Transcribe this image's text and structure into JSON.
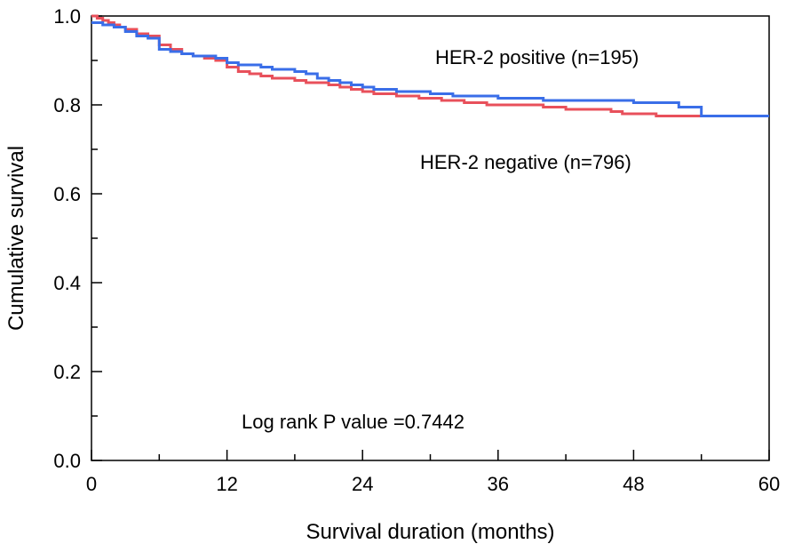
{
  "chart_data": {
    "type": "line",
    "step": true,
    "xlabel": "Survival duration (months)",
    "ylabel": "Cumulative survival",
    "xlim": [
      0,
      60
    ],
    "ylim": [
      0.0,
      1.0
    ],
    "x_ticks": [
      0,
      12,
      24,
      36,
      48,
      60
    ],
    "y_ticks": [
      0.0,
      0.2,
      0.4,
      0.6,
      0.8,
      1.0
    ],
    "x_tick_labels": [
      "0",
      "12",
      "24",
      "36",
      "48",
      "60"
    ],
    "y_tick_labels": [
      "0.0",
      "0.2",
      "0.4",
      "0.6",
      "0.8",
      "1.0"
    ],
    "grid": false,
    "series": [
      {
        "name": "HER-2 negative (n=796)",
        "color": "#e8505b",
        "x": [
          0,
          0.5,
          1,
          1.5,
          2,
          2.5,
          3,
          4,
          5,
          6,
          7,
          8,
          9,
          10,
          11,
          12,
          13,
          14,
          15,
          16,
          17,
          18,
          19,
          20,
          21,
          22,
          23,
          24,
          25,
          26,
          27,
          28,
          29,
          30,
          31,
          32,
          33,
          34,
          35,
          36,
          38,
          40,
          42,
          44,
          46,
          47,
          48,
          50,
          52,
          54,
          56,
          58,
          60
        ],
        "values": [
          1.0,
          0.995,
          0.99,
          0.985,
          0.98,
          0.975,
          0.97,
          0.96,
          0.955,
          0.935,
          0.925,
          0.915,
          0.91,
          0.905,
          0.9,
          0.885,
          0.875,
          0.87,
          0.865,
          0.86,
          0.86,
          0.855,
          0.85,
          0.85,
          0.845,
          0.84,
          0.835,
          0.83,
          0.825,
          0.825,
          0.82,
          0.82,
          0.815,
          0.815,
          0.81,
          0.81,
          0.805,
          0.805,
          0.8,
          0.8,
          0.8,
          0.795,
          0.79,
          0.79,
          0.785,
          0.78,
          0.78,
          0.775,
          0.775,
          0.775,
          0.775,
          0.775,
          0.775
        ]
      },
      {
        "name": "HER-2 positive (n=195)",
        "color": "#3a6ee8",
        "x": [
          0,
          1,
          2,
          3,
          4,
          5,
          6,
          7,
          8,
          9,
          10,
          11,
          12,
          13,
          14,
          15,
          16,
          17,
          18,
          19,
          20,
          21,
          22,
          23,
          24,
          25,
          26,
          27,
          28,
          30,
          32,
          34,
          36,
          38,
          40,
          42,
          44,
          46,
          48,
          50,
          52,
          54,
          56,
          58,
          60
        ],
        "values": [
          0.985,
          0.98,
          0.975,
          0.965,
          0.955,
          0.95,
          0.925,
          0.92,
          0.915,
          0.91,
          0.91,
          0.905,
          0.895,
          0.89,
          0.89,
          0.885,
          0.88,
          0.88,
          0.875,
          0.87,
          0.86,
          0.855,
          0.85,
          0.845,
          0.84,
          0.835,
          0.835,
          0.83,
          0.83,
          0.825,
          0.82,
          0.82,
          0.815,
          0.815,
          0.81,
          0.81,
          0.81,
          0.81,
          0.805,
          0.805,
          0.795,
          0.775,
          0.775,
          0.775,
          0.775
        ]
      }
    ],
    "annotations": {
      "positive_label": "HER-2 positive (n=195)",
      "negative_label": "HER-2 negative (n=796)",
      "pvalue_label": "Log rank P value =0.7442"
    }
  }
}
